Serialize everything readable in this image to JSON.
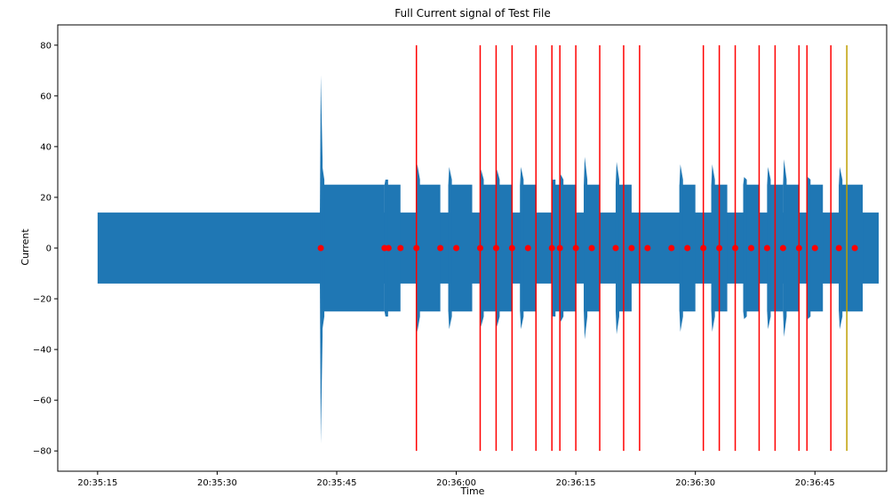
{
  "chart_data": {
    "type": "line",
    "title": "Full Current signal of Test File",
    "xlabel": "Time",
    "ylabel": "Current",
    "xlim": [
      "20:35:10",
      "20:36:54"
    ],
    "ylim": [
      -88,
      88
    ],
    "x_ticks": [
      "20:35:15",
      "20:35:30",
      "20:35:45",
      "20:36:00",
      "20:36:15",
      "20:36:30",
      "20:36:45"
    ],
    "y_ticks": [
      80,
      60,
      40,
      20,
      0,
      -20,
      -40,
      -60,
      -80
    ],
    "grid": false,
    "signal": {
      "start": "20:35:15",
      "end": "20:36:53",
      "baseline_envelope": [
        -14,
        14
      ],
      "loaded_envelope": [
        -25,
        25
      ],
      "spike": {
        "time": "20:35:43",
        "max": 68,
        "min": -77
      },
      "load_segments": [
        {
          "start": "20:35:43",
          "end": "20:35:51",
          "peak": 34,
          "trough": -34
        },
        {
          "start": "20:35:51",
          "end": "20:35:53",
          "peak": 27,
          "trough": -27
        },
        {
          "start": "20:35:55",
          "end": "20:35:58",
          "peak": 33,
          "trough": -33
        },
        {
          "start": "20:35:59",
          "end": "20:36:02",
          "peak": 32,
          "trough": -32
        },
        {
          "start": "20:36:03",
          "end": "20:36:05",
          "peak": 31,
          "trough": -31
        },
        {
          "start": "20:36:05",
          "end": "20:36:07",
          "peak": 31,
          "trough": -31
        },
        {
          "start": "20:36:08",
          "end": "20:36:10",
          "peak": 32,
          "trough": -32
        },
        {
          "start": "20:36:12",
          "end": "20:36:13",
          "peak": 27,
          "trough": -27
        },
        {
          "start": "20:36:13",
          "end": "20:36:15",
          "peak": 29,
          "trough": -29
        },
        {
          "start": "20:36:16",
          "end": "20:36:18",
          "peak": 36,
          "trough": -36
        },
        {
          "start": "20:36:20",
          "end": "20:36:22",
          "peak": 34,
          "trough": -34
        },
        {
          "start": "20:36:28",
          "end": "20:36:30",
          "peak": 33,
          "trough": -33
        },
        {
          "start": "20:36:32",
          "end": "20:36:34",
          "peak": 33,
          "trough": -33
        },
        {
          "start": "20:36:36",
          "end": "20:36:38",
          "peak": 28,
          "trough": -28
        },
        {
          "start": "20:36:39",
          "end": "20:36:41",
          "peak": 32,
          "trough": -32
        },
        {
          "start": "20:36:41",
          "end": "20:36:43",
          "peak": 35,
          "trough": -35
        },
        {
          "start": "20:36:44",
          "end": "20:36:46",
          "peak": 28,
          "trough": -28
        },
        {
          "start": "20:36:48",
          "end": "20:36:51",
          "peak": 32,
          "trough": -32
        }
      ]
    },
    "event_markers": {
      "y": 0,
      "times": [
        "20:35:43",
        "20:35:51",
        "20:35:51.5",
        "20:35:53",
        "20:35:55",
        "20:35:58",
        "20:36:00",
        "20:36:03",
        "20:36:05",
        "20:36:07",
        "20:36:09",
        "20:36:12",
        "20:36:13",
        "20:36:15",
        "20:36:17",
        "20:36:20",
        "20:36:22",
        "20:36:24",
        "20:36:27",
        "20:36:29",
        "20:36:31",
        "20:36:33",
        "20:36:35",
        "20:36:37",
        "20:36:39",
        "20:36:41",
        "20:36:43",
        "20:36:45",
        "20:36:48",
        "20:36:50"
      ]
    },
    "red_lines": [
      "20:35:55",
      "20:36:03",
      "20:36:05",
      "20:36:07",
      "20:36:10",
      "20:36:12",
      "20:36:13",
      "20:36:15",
      "20:36:18",
      "20:36:21",
      "20:36:23",
      "20:36:31",
      "20:36:33",
      "20:36:35",
      "20:36:38",
      "20:36:40",
      "20:36:43",
      "20:36:44",
      "20:36:47"
    ],
    "yellow_lines": [
      "20:36:49"
    ],
    "colors": {
      "signal": "#1f77b4",
      "markers": "#ff0000",
      "red_lines": "#ff0000",
      "yellow_lines": "#bf9f00",
      "axes": "#000000"
    }
  }
}
